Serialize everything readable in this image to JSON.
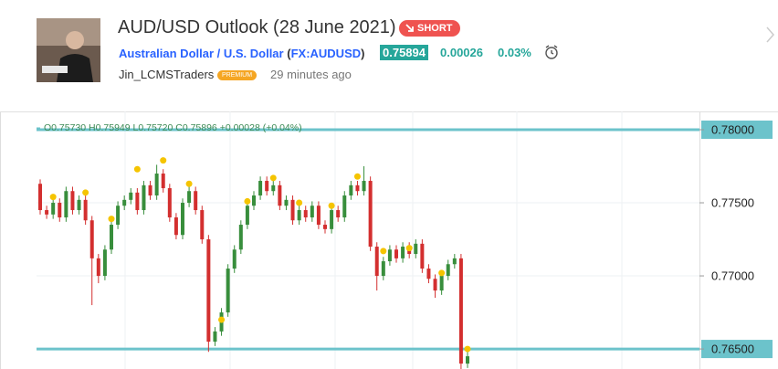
{
  "header": {
    "title": "AUD/USD Outlook (28 June 2021)",
    "badge": "SHORT",
    "symbol_name": "Australian Dollar / U.S. Dollar",
    "symbol_code": "FX:AUDUSD",
    "price": "0.75894",
    "change": "0.00026",
    "change_pct": "0.03%",
    "author": "Jin_LCMSTraders",
    "author_badge": "PREMIUM",
    "time": "29 minutes ago"
  },
  "chart_data": {
    "type": "candlestick",
    "legend": {
      "open": "O0.75730",
      "high": "H0.75949",
      "low": "L0.75720",
      "close": "C0.75896",
      "change": "+0.00028 (+0.04%)"
    },
    "ylim": [
      0.76363,
      0.78125
    ],
    "yticks": [
      {
        "value": 0.78,
        "label": "0.78000"
      },
      {
        "value": 0.775,
        "label": "0.77500"
      },
      {
        "value": 0.77,
        "label": "0.77000"
      },
      {
        "value": 0.765,
        "label": "0.76500"
      }
    ],
    "hlines": [
      0.78,
      0.765
    ],
    "up_color": "#388e3c",
    "down_color": "#d32f2f",
    "line_color": "#6cc3cb",
    "marker_color": "#f5c400",
    "open": [
      0.7763,
      0.7745,
      0.7742,
      0.775,
      0.774,
      0.7758,
      0.7745,
      0.7752,
      0.7738,
      0.7712,
      0.77,
      0.7718,
      0.7735,
      0.7748,
      0.7752,
      0.7757,
      0.7745,
      0.7762,
      0.7755,
      0.777,
      0.776,
      0.774,
      0.7728,
      0.775,
      0.7758,
      0.7745,
      0.7725,
      0.7655,
      0.7662,
      0.7675,
      0.7705,
      0.7718,
      0.7735,
      0.7748,
      0.7755,
      0.7765,
      0.7758,
      0.7762,
      0.7748,
      0.7752,
      0.7738,
      0.7745,
      0.774,
      0.7748,
      0.7735,
      0.7732,
      0.7745,
      0.774,
      0.7755,
      0.7762,
      0.7758,
      0.7765,
      0.772,
      0.77,
      0.771,
      0.7718,
      0.7712,
      0.772,
      0.7715,
      0.7722,
      0.7705,
      0.7698,
      0.769,
      0.77,
      0.7708,
      0.7712,
      0.764
    ],
    "high": [
      0.7766,
      0.7748,
      0.7753,
      0.7753,
      0.7761,
      0.7761,
      0.7755,
      0.7755,
      0.7741,
      0.7715,
      0.7721,
      0.7738,
      0.7751,
      0.7755,
      0.776,
      0.776,
      0.7765,
      0.7765,
      0.7776,
      0.7773,
      0.7763,
      0.7743,
      0.7753,
      0.7761,
      0.7761,
      0.7748,
      0.7728,
      0.7665,
      0.7678,
      0.7708,
      0.7721,
      0.7738,
      0.7751,
      0.7758,
      0.7768,
      0.7768,
      0.7765,
      0.7765,
      0.7755,
      0.7755,
      0.7748,
      0.7748,
      0.7751,
      0.7751,
      0.7738,
      0.7748,
      0.7748,
      0.7758,
      0.7765,
      0.7765,
      0.7775,
      0.7768,
      0.7723,
      0.7713,
      0.7721,
      0.7721,
      0.7723,
      0.7723,
      0.7725,
      0.7725,
      0.7708,
      0.7701,
      0.7703,
      0.7711,
      0.7715,
      0.7715,
      0.7648
    ],
    "low": [
      0.7742,
      0.7739,
      0.7739,
      0.7737,
      0.7737,
      0.7742,
      0.7742,
      0.7735,
      0.768,
      0.7695,
      0.7697,
      0.7715,
      0.7732,
      0.7745,
      0.7749,
      0.7742,
      0.7742,
      0.7752,
      0.7752,
      0.7757,
      0.7737,
      0.7725,
      0.7725,
      0.7747,
      0.7742,
      0.7722,
      0.7648,
      0.7652,
      0.7659,
      0.7672,
      0.7702,
      0.7715,
      0.7732,
      0.7745,
      0.7752,
      0.7755,
      0.7755,
      0.7745,
      0.7745,
      0.7735,
      0.7735,
      0.7737,
      0.7737,
      0.7732,
      0.7729,
      0.7729,
      0.7737,
      0.7737,
      0.7752,
      0.7755,
      0.7755,
      0.7717,
      0.769,
      0.7697,
      0.7707,
      0.7709,
      0.7709,
      0.7712,
      0.7712,
      0.7702,
      0.7695,
      0.7685,
      0.7687,
      0.7697,
      0.7705,
      0.763,
      0.7637
    ],
    "close": [
      0.7745,
      0.7742,
      0.775,
      0.774,
      0.7758,
      0.7745,
      0.7752,
      0.7738,
      0.7712,
      0.77,
      0.7718,
      0.7735,
      0.7748,
      0.7752,
      0.7757,
      0.7745,
      0.7762,
      0.7755,
      0.777,
      0.776,
      0.774,
      0.7728,
      0.775,
      0.7758,
      0.7745,
      0.7725,
      0.7655,
      0.7662,
      0.7675,
      0.7705,
      0.7718,
      0.7735,
      0.7748,
      0.7755,
      0.7765,
      0.7758,
      0.7762,
      0.7748,
      0.7752,
      0.7738,
      0.7745,
      0.774,
      0.7748,
      0.7735,
      0.7732,
      0.7745,
      0.774,
      0.7755,
      0.7762,
      0.7758,
      0.7765,
      0.772,
      0.77,
      0.771,
      0.7718,
      0.7712,
      0.772,
      0.7715,
      0.7722,
      0.7705,
      0.7698,
      0.769,
      0.77,
      0.7708,
      0.7712,
      0.764,
      0.7645
    ],
    "markers": [
      null,
      null,
      0.7754,
      null,
      null,
      null,
      null,
      0.7757,
      null,
      null,
      null,
      0.7739,
      null,
      null,
      null,
      0.7773,
      null,
      null,
      null,
      0.7779,
      null,
      null,
      null,
      0.7763,
      null,
      null,
      null,
      null,
      0.767,
      null,
      null,
      null,
      0.7751,
      null,
      null,
      null,
      0.7767,
      null,
      null,
      null,
      0.775,
      null,
      null,
      null,
      null,
      0.7748,
      null,
      null,
      null,
      0.7768,
      null,
      null,
      null,
      0.7717,
      null,
      null,
      null,
      0.7719,
      null,
      null,
      null,
      null,
      0.7702,
      null,
      null,
      null,
      0.765
    ]
  }
}
